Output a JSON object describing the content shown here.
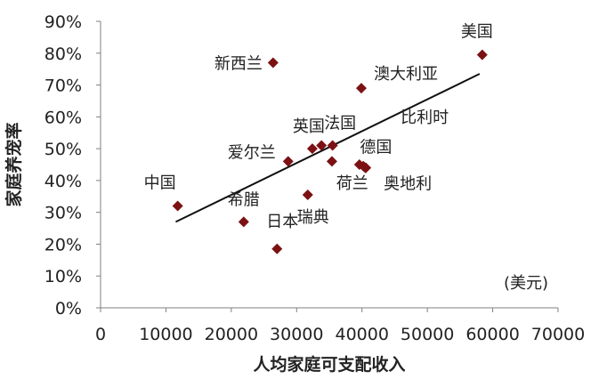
{
  "chart_data": {
    "type": "scatter",
    "title": "",
    "xlabel": "人均家庭可支配收入",
    "ylabel": "家庭养宠率",
    "unit_note": "(美元)",
    "xlim": [
      0,
      70000
    ],
    "ylim": [
      0,
      0.9
    ],
    "x_ticks": [
      "0",
      "10000",
      "20000",
      "30000",
      "40000",
      "50000",
      "60000",
      "70000"
    ],
    "y_ticks": [
      "0%",
      "10%",
      "20%",
      "30%",
      "40%",
      "50%",
      "60%",
      "70%",
      "80%",
      "90%"
    ],
    "grid": false,
    "marker_color": "#7b1113",
    "line_color": "#111111",
    "points": [
      {
        "label": "中国",
        "x": 11800,
        "y": 0.32
      },
      {
        "label": "希腊",
        "x": 21900,
        "y": 0.27
      },
      {
        "label": "新西兰",
        "x": 26400,
        "y": 0.77
      },
      {
        "label": "日本",
        "x": 27000,
        "y": 0.185
      },
      {
        "label": "爱尔兰",
        "x": 28700,
        "y": 0.46
      },
      {
        "label": "瑞典",
        "x": 31700,
        "y": 0.355
      },
      {
        "label": "英国",
        "x": 32400,
        "y": 0.5
      },
      {
        "label": "法国",
        "x": 33800,
        "y": 0.51
      },
      {
        "label": "",
        "x": 35400,
        "y": 0.46
      },
      {
        "label": "",
        "x": 35500,
        "y": 0.51
      },
      {
        "label": "荷兰",
        "x": 39600,
        "y": 0.45
      },
      {
        "label": "澳大利亚",
        "x": 39900,
        "y": 0.69
      },
      {
        "label": "德国",
        "x": 40500,
        "y": 0.44
      },
      {
        "label": "奥地利",
        "x": 40600,
        "y": 0.44
      },
      {
        "label": "比利时",
        "x": 40200,
        "y": 0.445
      },
      {
        "label": "美国",
        "x": 58400,
        "y": 0.795
      }
    ],
    "trendline": {
      "x": [
        11500,
        58000
      ],
      "y": [
        0.27,
        0.735
      ]
    }
  }
}
